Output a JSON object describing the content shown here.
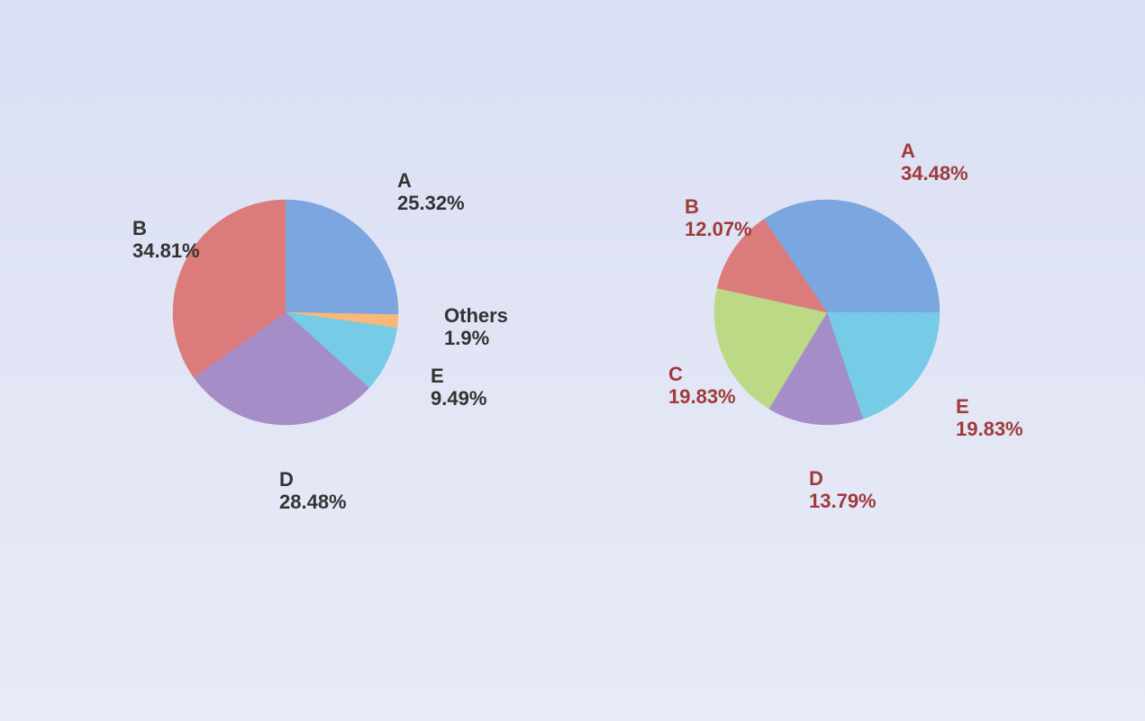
{
  "chart_data": [
    {
      "type": "pie",
      "categories": [
        "A",
        "Others",
        "E",
        "D",
        "B"
      ],
      "values": [
        25.32,
        1.9,
        9.49,
        28.48,
        34.81
      ],
      "value_labels": [
        "25.32%",
        "1.9%",
        "9.49%",
        "28.48%",
        "34.81%"
      ],
      "colors": [
        "#7ba6e0",
        "#f7b87a",
        "#76cbe6",
        "#a58ec8",
        "#dc7b7b"
      ],
      "label_color": "#333333"
    },
    {
      "type": "pie",
      "categories": [
        "A",
        "E",
        "D",
        "C",
        "B"
      ],
      "values": [
        34.48,
        19.83,
        13.79,
        19.83,
        12.07
      ],
      "value_labels": [
        "34.48%",
        "19.83%",
        "13.79%",
        "19.83%",
        "12.07%"
      ],
      "colors": [
        "#7ba6e0",
        "#76cbe6",
        "#a58ec8",
        "#bcd986",
        "#dc7b7b"
      ],
      "label_color": "#a03a3a"
    }
  ]
}
